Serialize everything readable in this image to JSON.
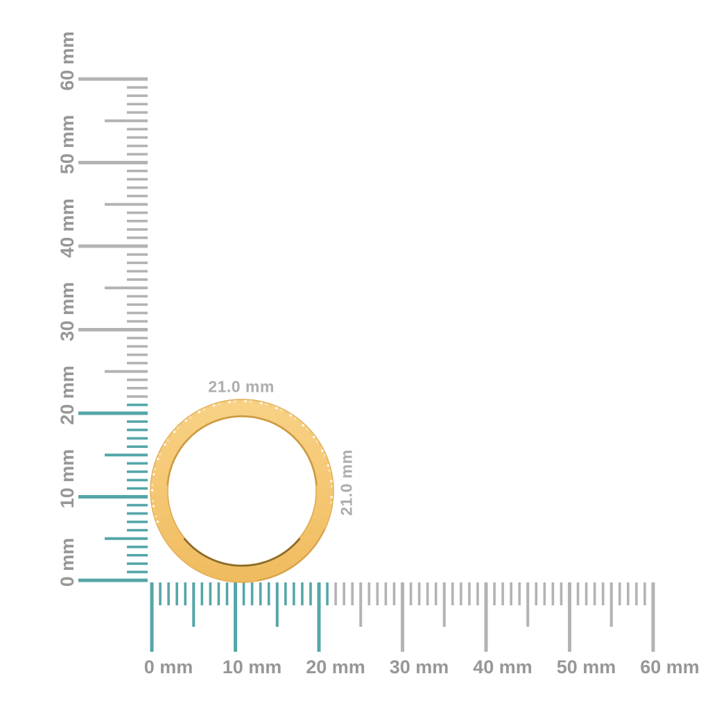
{
  "colors": {
    "background": "#ffffff",
    "highlight_teal": "#55a6a8",
    "tick_gray": "#b3b3b3",
    "ruler_label_gray": "#979797",
    "dimension_label_gray": "#adadad",
    "gold_light": "#f8d286",
    "gold_mid": "#f5c773",
    "gold_deep": "#efbb5f",
    "gold_edge": "#e0a94e",
    "gold_inner_edge": "#d8a54a",
    "gold_inner_shadow": "#c08a30",
    "gold_bottom_shadow": "#6f5720",
    "stone_colors": [
      "#ffffff",
      "#f7e5b4",
      "#ecca78"
    ]
  },
  "rulers": {
    "unit": "mm",
    "min_mm": 0,
    "max_mm": 60,
    "major_step_mm": 10,
    "half_step_mm": 5,
    "minor_step_mm": 1,
    "highlight_range_mm": [
      0,
      21
    ],
    "vertical_labels": [
      "0 mm",
      "10 mm",
      "20 mm",
      "30 mm",
      "40 mm",
      "50 mm",
      "60 mm"
    ],
    "horizontal_labels": [
      "0 mm",
      "10 mm",
      "20 mm",
      "30 mm",
      "40 mm",
      "50 mm",
      "60 mm"
    ]
  },
  "ring": {
    "width_label": "21.0 mm",
    "height_label": "21.0 mm",
    "outer_diameter_mm": 21.0,
    "unit": "mm",
    "material": "yellow-gold-band-with-pave-stones"
  }
}
